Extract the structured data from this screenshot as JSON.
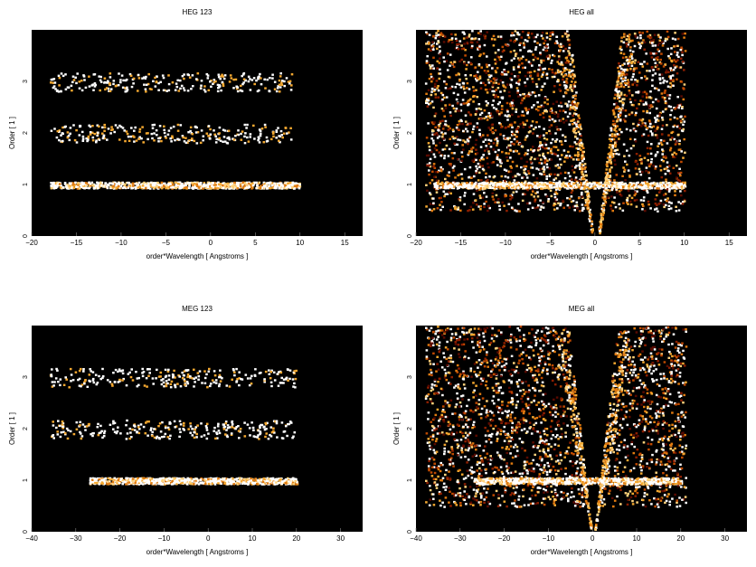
{
  "figure": {
    "panels": [
      {
        "id": "heg123",
        "title": "HEG 123",
        "xlabel": "order*Wavelength [ Angstroms ]",
        "ylabel": "Order [ 1 ]"
      },
      {
        "id": "hegall",
        "title": "HEG all",
        "xlabel": "order*Wavelength [ Angstroms ]",
        "ylabel": "Order [ 1 ]"
      },
      {
        "id": "meg123",
        "title": "MEG 123",
        "xlabel": "order*Wavelength [ Angstroms ]",
        "ylabel": "Order [ 1 ]"
      },
      {
        "id": "megall",
        "title": "MEG all",
        "xlabel": "order*Wavelength [ Angstroms ]",
        "ylabel": "Order [ 1 ]"
      }
    ]
  },
  "colors": {
    "plot_background": "#000000",
    "heat_scale": [
      "#5a0a00",
      "#8c1e00",
      "#c04a00",
      "#e07a10",
      "#f4a830",
      "#ffd27a",
      "#ffffff"
    ]
  },
  "chart_data": [
    {
      "type": "heatmap",
      "title": "HEG 123",
      "xlabel": "order*Wavelength [ Angstroms ]",
      "ylabel": "Order [ 1 ]",
      "xlim": [
        -20,
        17
      ],
      "ylim": [
        0,
        4
      ],
      "xticks": [
        -20,
        -15,
        -10,
        -5,
        0,
        5,
        10,
        15
      ],
      "yticks": [
        0,
        1,
        2,
        3
      ],
      "grid": false,
      "bands": [
        {
          "order": 1,
          "x_range": [
            -18,
            10
          ],
          "intensity": "high"
        },
        {
          "order": 2,
          "x_range": [
            -18,
            9
          ],
          "intensity": "low"
        },
        {
          "order": 3,
          "x_range": [
            -18,
            9
          ],
          "intensity": "low"
        }
      ]
    },
    {
      "type": "heatmap",
      "title": "HEG all",
      "xlabel": "order*Wavelength [ Angstroms ]",
      "ylabel": "Order [ 1 ]",
      "xlim": [
        -20,
        17
      ],
      "ylim": [
        0,
        4
      ],
      "xticks": [
        -20,
        -15,
        -10,
        -5,
        0,
        5,
        10,
        15
      ],
      "yticks": [
        0,
        1,
        2,
        3
      ],
      "grid": false,
      "bands": [
        {
          "order": 1,
          "x_range": [
            -18,
            10
          ],
          "intensity": "high"
        }
      ],
      "background_region": {
        "x_range": [
          -19,
          10
        ],
        "y_range": [
          0.5,
          4
        ]
      }
    },
    {
      "type": "heatmap",
      "title": "MEG 123",
      "xlabel": "order*Wavelength [ Angstroms ]",
      "ylabel": "Order [ 1 ]",
      "xlim": [
        -40,
        35
      ],
      "ylim": [
        0,
        4
      ],
      "xticks": [
        -40,
        -30,
        -20,
        -10,
        0,
        10,
        20,
        30
      ],
      "yticks": [
        0,
        1,
        2,
        3
      ],
      "grid": false,
      "bands": [
        {
          "order": 1,
          "x_range": [
            -27,
            20
          ],
          "intensity": "high"
        },
        {
          "order": 2,
          "x_range": [
            -36,
            20
          ],
          "intensity": "low"
        },
        {
          "order": 3,
          "x_range": [
            -36,
            20
          ],
          "intensity": "low"
        }
      ]
    },
    {
      "type": "heatmap",
      "title": "MEG all",
      "xlabel": "order*Wavelength [ Angstroms ]",
      "ylabel": "Order [ 1 ]",
      "xlim": [
        -40,
        35
      ],
      "ylim": [
        0,
        4
      ],
      "xticks": [
        -40,
        -30,
        -20,
        -10,
        0,
        10,
        20,
        30
      ],
      "yticks": [
        0,
        1,
        2,
        3
      ],
      "grid": false,
      "bands": [
        {
          "order": 1,
          "x_range": [
            -27,
            20
          ],
          "intensity": "high"
        }
      ],
      "background_region": {
        "x_range": [
          -38,
          21
        ],
        "y_range": [
          0.5,
          4
        ]
      }
    }
  ]
}
